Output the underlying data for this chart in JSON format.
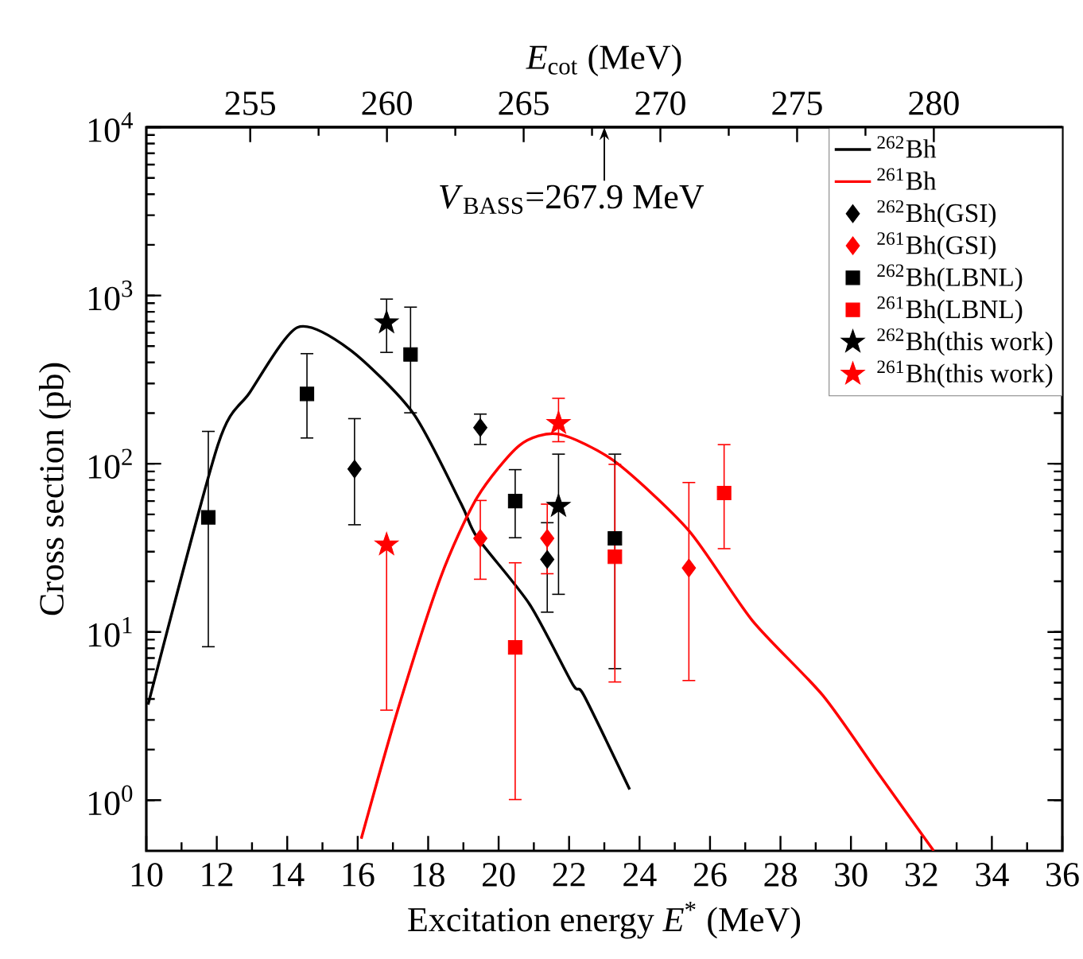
{
  "chart_data": {
    "type": "scatter",
    "xlabel": "Excitation energy *E*$^{*}$ (MeV)",
    "ylabel": "Cross section (pb)",
    "x2label": "*E*$_{cot}$ (MeV)",
    "annotations": [
      "*V*$_{BASS}$=267.9 MeV"
    ],
    "xlim": [
      10,
      36
    ],
    "xticks": [
      10,
      12,
      14,
      16,
      18,
      20,
      22,
      24,
      26,
      28,
      30,
      32,
      34,
      36
    ],
    "x2lim": [
      251.2,
      284.7
    ],
    "x2ticks": [
      255,
      260,
      265,
      270,
      275,
      280
    ],
    "ylim": [
      0.5,
      10000
    ],
    "log": "y",
    "yticks": [
      {
        "value": 1,
        "label": "10$^{0}$"
      },
      {
        "value": 10,
        "label": "10$^{1}$"
      },
      {
        "value": 100,
        "label": "10$^{2}$"
      },
      {
        "value": 1000,
        "label": "10$^{3}$"
      },
      {
        "value": 10000,
        "label": "10$^{4}$"
      }
    ],
    "legend": "top right",
    "series": [
      {
        "name": "$^{262}$Bh",
        "type": "line",
        "color": "#000000",
        "marker": "none",
        "line_style": "solid",
        "x": [
          10.05,
          12.03,
          12.93,
          14.29,
          15.78,
          17.58,
          18.94,
          19.39,
          20.88,
          22.1,
          22.42,
          23.72
        ],
        "values": [
          3.7,
          129,
          264,
          646,
          476,
          199,
          57.6,
          36.5,
          14.6,
          4.9,
          4.2,
          1.16
        ]
      },
      {
        "name": "$^{261}$Bh",
        "type": "line",
        "color": "#ff0000",
        "marker": "none",
        "line_style": "solid",
        "x": [
          16.1,
          17.13,
          18.35,
          19.39,
          20.6,
          21.7,
          23.3,
          25.4,
          27.2,
          29.2,
          30.8,
          32.35
        ],
        "values": [
          0.59,
          3.4,
          21,
          63,
          129,
          150,
          103,
          40,
          11.7,
          4.2,
          1.42,
          0.5
        ]
      },
      {
        "name": "$^{262}$Bh(GSI)",
        "color": "#000000",
        "marker": "diamond",
        "x": [
          15.91,
          19.48,
          21.38
        ],
        "values": [
          93,
          164,
          27
        ],
        "errors": [
          [
            43,
            187
          ],
          [
            129,
            199
          ],
          [
            13,
            45
          ]
        ]
      },
      {
        "name": "$^{261}$Bh(GSI)",
        "color": "#ff0000",
        "marker": "diamond",
        "x": [
          19.48,
          21.38,
          25.4
        ],
        "values": [
          36,
          36,
          24
        ],
        "errors": [
          [
            20.4,
            61
          ],
          [
            22,
            58
          ],
          [
            5.1,
            78
          ]
        ]
      },
      {
        "name": "$^{262}$Bh(LBNL)",
        "color": "#000000",
        "marker": "square",
        "x": [
          11.76,
          14.56,
          17.5,
          20.47,
          23.3
        ],
        "values": [
          48,
          260,
          446,
          60,
          36
        ],
        "errors": [
          [
            8.1,
            157
          ],
          [
            141,
            455
          ],
          [
            199,
            860
          ],
          [
            36,
            93
          ],
          [
            6,
            115
          ]
        ]
      },
      {
        "name": "$^{261}$Bh(LBNL)",
        "color": "#ff0000",
        "marker": "square",
        "x": [
          20.47,
          23.3,
          26.4
        ],
        "values": [
          8.1,
          28,
          67
        ],
        "errors": [
          [
            1.0,
            26
          ],
          [
            5,
            100
          ],
          [
            31,
            131
          ]
        ]
      },
      {
        "name": "$^{262}$Bh(this work)",
        "color": "#000000",
        "marker": "star",
        "x": [
          16.82,
          21.7
        ],
        "values": [
          690,
          56
        ],
        "errors": [
          [
            455,
            960
          ],
          [
            16.6,
            115
          ]
        ]
      },
      {
        "name": "$^{261}$Bh(this work)",
        "color": "#ff0000",
        "marker": "star",
        "x": [
          16.82,
          21.7
        ],
        "values": [
          33,
          174
        ],
        "errors": [
          [
            3.4,
            33
          ],
          [
            134,
            247
          ]
        ]
      }
    ]
  }
}
